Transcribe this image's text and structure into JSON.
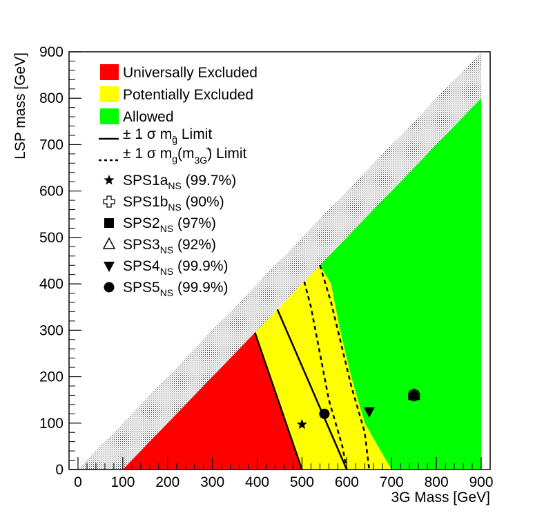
{
  "chart_data": {
    "type": "area",
    "xlabel": "3G Mass [GeV]",
    "ylabel": "LSP mass [GeV]",
    "xlim": [
      -20,
      920
    ],
    "ylim": [
      0,
      900
    ],
    "xticks": [
      0,
      100,
      200,
      300,
      400,
      500,
      600,
      700,
      800,
      900
    ],
    "yticks": [
      0,
      100,
      200,
      300,
      400,
      500,
      600,
      700,
      800,
      900
    ],
    "colors": {
      "universally_excluded": "#ff0000",
      "potentially_excluded": "#ffff00",
      "allowed": "#00ff00",
      "forbidden_hatch": "#000000"
    },
    "regions": {
      "forbidden_band": [
        [
          0,
          0
        ],
        [
          900,
          900
        ],
        [
          900,
          800
        ],
        [
          100,
          0
        ]
      ],
      "universally_excluded": [
        [
          100,
          0
        ],
        [
          395,
          295
        ],
        [
          500,
          0
        ]
      ],
      "potentially_excluded": [
        [
          395,
          295
        ],
        [
          540,
          440
        ],
        [
          565,
          400
        ],
        [
          585,
          300
        ],
        [
          610,
          200
        ],
        [
          640,
          100
        ],
        [
          700,
          0
        ],
        [
          500,
          0
        ]
      ],
      "allowed": [
        [
          540,
          440
        ],
        [
          900,
          800
        ],
        [
          900,
          0
        ],
        [
          700,
          0
        ],
        [
          640,
          100
        ],
        [
          610,
          200
        ],
        [
          585,
          300
        ],
        [
          565,
          400
        ]
      ]
    },
    "limit_lines": {
      "solid": [
        [
          445,
          345
        ],
        [
          600,
          0
        ]
      ],
      "dashed_inner": [
        [
          [
            505,
            405
          ],
          [
            520,
            350
          ],
          [
            540,
            250
          ],
          [
            560,
            150
          ],
          [
            590,
            50
          ],
          [
            600,
            0
          ]
        ]
      ],
      "dashed_outer": [
        [
          [
            540,
            440
          ],
          [
            565,
            360
          ],
          [
            585,
            280
          ],
          [
            610,
            180
          ],
          [
            640,
            80
          ],
          [
            650,
            0
          ]
        ]
      ]
    },
    "points": [
      {
        "name": "SPS1a",
        "marker": "star",
        "x": 500,
        "y": 97
      },
      {
        "name": "SPS1b",
        "marker": "cross",
        "x": 750,
        "y": 160
      },
      {
        "name": "SPS2",
        "marker": "square",
        "x": 750,
        "y": 160
      },
      {
        "name": "SPS3",
        "marker": "triangle-up",
        "x": 750,
        "y": 160
      },
      {
        "name": "SPS4",
        "marker": "triangle-down",
        "x": 650,
        "y": 125
      },
      {
        "name": "SPS5",
        "marker": "circle",
        "x": 550,
        "y": 120
      }
    ]
  },
  "legend": {
    "universally_excluded": "Universally Excluded",
    "potentially_excluded": "Potentially Excluded",
    "allowed": "Allowed",
    "solid_line": {
      "pm": "±",
      "sigma": "1 σ",
      "m": "m",
      "sub": "g̃",
      "rest": "Limit"
    },
    "dashed_line": {
      "pm": "±",
      "sigma": "1 σ",
      "m": "m",
      "sub": "g",
      "paren_open": "(m",
      "inner_sub": "3G",
      "tilde": "~",
      "paren_close": ")",
      "rest": "Limit"
    },
    "points": [
      {
        "label": "SPS1a",
        "sub": "NS",
        "pct": "(99.7%)"
      },
      {
        "label": "SPS1b",
        "sub": "NS",
        "pct": "(90%)"
      },
      {
        "label": "SPS2",
        "sub": "NS",
        "pct": "(97%)"
      },
      {
        "label": "SPS3",
        "sub": "NS",
        "pct": "(92%)"
      },
      {
        "label": "SPS4",
        "sub": "NS",
        "pct": "(99.9%)"
      },
      {
        "label": "SPS5",
        "sub": "NS",
        "pct": "(99.9%)"
      }
    ]
  }
}
